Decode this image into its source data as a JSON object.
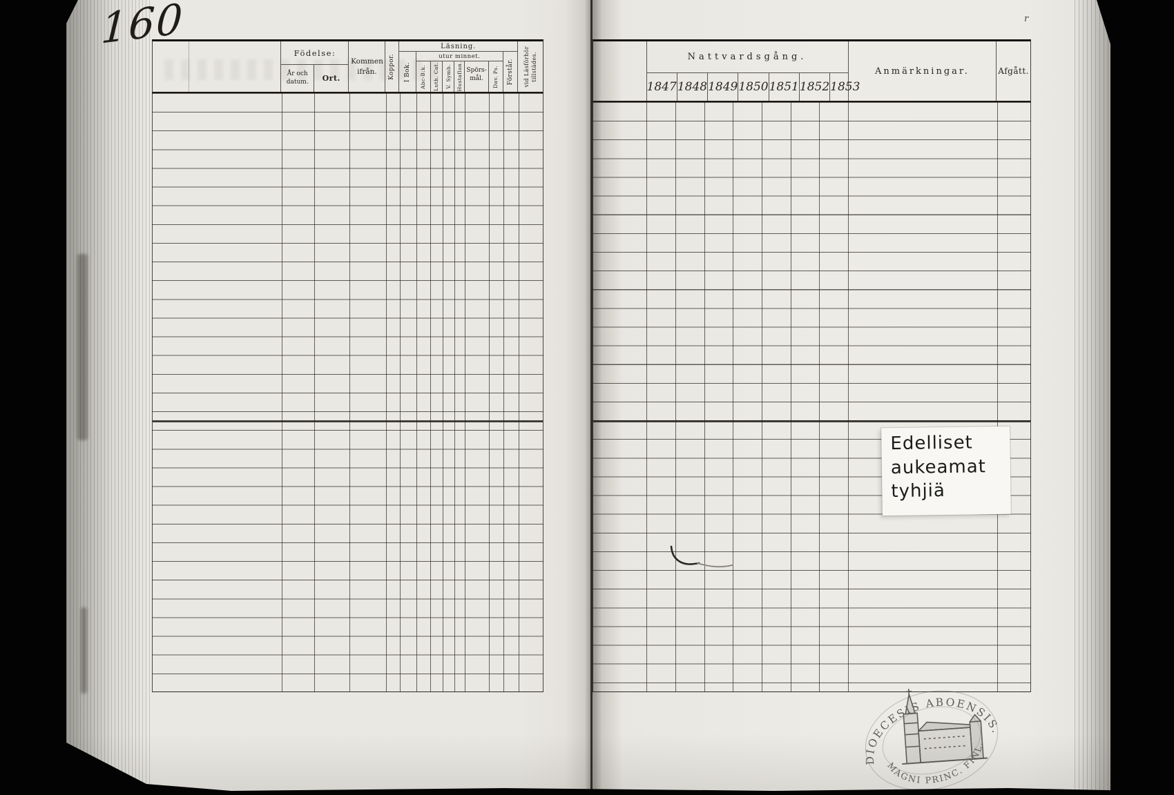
{
  "document": {
    "page_number": "160",
    "left_table": {
      "fodelse_label": "Födelse:",
      "ar_datum": "År och datum.",
      "ort": "Ort.",
      "kommen": "Kommen ifrån.",
      "koppor": "Koppor.",
      "lasning_label": "Läsning.",
      "i_bok": "I Bok.",
      "utur_minnet_label": "utur minnet.",
      "abc_bok": "Abc-B:k.",
      "luth_cat": "Luth. Cat.",
      "v_symb": "V. Symb.",
      "hustaflan": "Hustaflan.",
      "sporsmal": "Spörs-mål.",
      "dav_ps": "Dav. Ps.",
      "forstar": "Förstår.",
      "tillstades_line1": "vid Läsförhör",
      "tillstades_line2": "tillstädes."
    },
    "right_table": {
      "nattvardsgang_label": "Nattvardsgång.",
      "years": [
        "1847",
        "1848",
        "1849",
        "1850",
        "1851",
        "1852",
        "1853"
      ],
      "anmarkningar": "Anmärkningar.",
      "afgatt": "Afgått."
    },
    "note": {
      "line1": "Edelliset",
      "line2": "aukeamat",
      "line3": "tyhjiä"
    },
    "stamp": {
      "arc_top": "DIOECESIS ABOENSIS.",
      "arc_bottom": "MAGNI PRINC. FINL."
    },
    "colors": {
      "paper": "#eae8e3",
      "ink": "#26231f",
      "scan_background": "#030303",
      "note_paper": "#f8f7f3",
      "stamp_ink": "#4c4a44"
    }
  }
}
